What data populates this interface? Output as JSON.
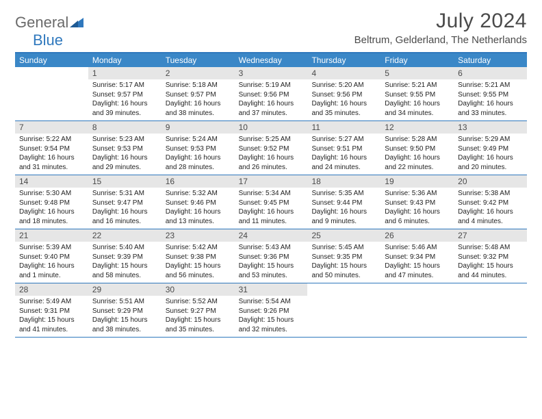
{
  "brand": {
    "part1": "General",
    "part2": "Blue"
  },
  "title": "July 2024",
  "location": "Beltrum, Gelderland, The Netherlands",
  "colors": {
    "header_bar": "#3a87c7",
    "rule": "#2f78bd",
    "daynum_bg": "#e6e6e6",
    "text_dark": "#4a4a4a",
    "body_text": "#222222",
    "white": "#ffffff",
    "logo_gray": "#6a6a6a",
    "logo_blue": "#2f78bd"
  },
  "daysOfWeek": [
    "Sunday",
    "Monday",
    "Tuesday",
    "Wednesday",
    "Thursday",
    "Friday",
    "Saturday"
  ],
  "weeks": [
    [
      {
        "n": "",
        "sr": "",
        "ss": "",
        "dl": ""
      },
      {
        "n": "1",
        "sr": "Sunrise: 5:17 AM",
        "ss": "Sunset: 9:57 PM",
        "dl": "Daylight: 16 hours and 39 minutes."
      },
      {
        "n": "2",
        "sr": "Sunrise: 5:18 AM",
        "ss": "Sunset: 9:57 PM",
        "dl": "Daylight: 16 hours and 38 minutes."
      },
      {
        "n": "3",
        "sr": "Sunrise: 5:19 AM",
        "ss": "Sunset: 9:56 PM",
        "dl": "Daylight: 16 hours and 37 minutes."
      },
      {
        "n": "4",
        "sr": "Sunrise: 5:20 AM",
        "ss": "Sunset: 9:56 PM",
        "dl": "Daylight: 16 hours and 35 minutes."
      },
      {
        "n": "5",
        "sr": "Sunrise: 5:21 AM",
        "ss": "Sunset: 9:55 PM",
        "dl": "Daylight: 16 hours and 34 minutes."
      },
      {
        "n": "6",
        "sr": "Sunrise: 5:21 AM",
        "ss": "Sunset: 9:55 PM",
        "dl": "Daylight: 16 hours and 33 minutes."
      }
    ],
    [
      {
        "n": "7",
        "sr": "Sunrise: 5:22 AM",
        "ss": "Sunset: 9:54 PM",
        "dl": "Daylight: 16 hours and 31 minutes."
      },
      {
        "n": "8",
        "sr": "Sunrise: 5:23 AM",
        "ss": "Sunset: 9:53 PM",
        "dl": "Daylight: 16 hours and 29 minutes."
      },
      {
        "n": "9",
        "sr": "Sunrise: 5:24 AM",
        "ss": "Sunset: 9:53 PM",
        "dl": "Daylight: 16 hours and 28 minutes."
      },
      {
        "n": "10",
        "sr": "Sunrise: 5:25 AM",
        "ss": "Sunset: 9:52 PM",
        "dl": "Daylight: 16 hours and 26 minutes."
      },
      {
        "n": "11",
        "sr": "Sunrise: 5:27 AM",
        "ss": "Sunset: 9:51 PM",
        "dl": "Daylight: 16 hours and 24 minutes."
      },
      {
        "n": "12",
        "sr": "Sunrise: 5:28 AM",
        "ss": "Sunset: 9:50 PM",
        "dl": "Daylight: 16 hours and 22 minutes."
      },
      {
        "n": "13",
        "sr": "Sunrise: 5:29 AM",
        "ss": "Sunset: 9:49 PM",
        "dl": "Daylight: 16 hours and 20 minutes."
      }
    ],
    [
      {
        "n": "14",
        "sr": "Sunrise: 5:30 AM",
        "ss": "Sunset: 9:48 PM",
        "dl": "Daylight: 16 hours and 18 minutes."
      },
      {
        "n": "15",
        "sr": "Sunrise: 5:31 AM",
        "ss": "Sunset: 9:47 PM",
        "dl": "Daylight: 16 hours and 16 minutes."
      },
      {
        "n": "16",
        "sr": "Sunrise: 5:32 AM",
        "ss": "Sunset: 9:46 PM",
        "dl": "Daylight: 16 hours and 13 minutes."
      },
      {
        "n": "17",
        "sr": "Sunrise: 5:34 AM",
        "ss": "Sunset: 9:45 PM",
        "dl": "Daylight: 16 hours and 11 minutes."
      },
      {
        "n": "18",
        "sr": "Sunrise: 5:35 AM",
        "ss": "Sunset: 9:44 PM",
        "dl": "Daylight: 16 hours and 9 minutes."
      },
      {
        "n": "19",
        "sr": "Sunrise: 5:36 AM",
        "ss": "Sunset: 9:43 PM",
        "dl": "Daylight: 16 hours and 6 minutes."
      },
      {
        "n": "20",
        "sr": "Sunrise: 5:38 AM",
        "ss": "Sunset: 9:42 PM",
        "dl": "Daylight: 16 hours and 4 minutes."
      }
    ],
    [
      {
        "n": "21",
        "sr": "Sunrise: 5:39 AM",
        "ss": "Sunset: 9:40 PM",
        "dl": "Daylight: 16 hours and 1 minute."
      },
      {
        "n": "22",
        "sr": "Sunrise: 5:40 AM",
        "ss": "Sunset: 9:39 PM",
        "dl": "Daylight: 15 hours and 58 minutes."
      },
      {
        "n": "23",
        "sr": "Sunrise: 5:42 AM",
        "ss": "Sunset: 9:38 PM",
        "dl": "Daylight: 15 hours and 56 minutes."
      },
      {
        "n": "24",
        "sr": "Sunrise: 5:43 AM",
        "ss": "Sunset: 9:36 PM",
        "dl": "Daylight: 15 hours and 53 minutes."
      },
      {
        "n": "25",
        "sr": "Sunrise: 5:45 AM",
        "ss": "Sunset: 9:35 PM",
        "dl": "Daylight: 15 hours and 50 minutes."
      },
      {
        "n": "26",
        "sr": "Sunrise: 5:46 AM",
        "ss": "Sunset: 9:34 PM",
        "dl": "Daylight: 15 hours and 47 minutes."
      },
      {
        "n": "27",
        "sr": "Sunrise: 5:48 AM",
        "ss": "Sunset: 9:32 PM",
        "dl": "Daylight: 15 hours and 44 minutes."
      }
    ],
    [
      {
        "n": "28",
        "sr": "Sunrise: 5:49 AM",
        "ss": "Sunset: 9:31 PM",
        "dl": "Daylight: 15 hours and 41 minutes."
      },
      {
        "n": "29",
        "sr": "Sunrise: 5:51 AM",
        "ss": "Sunset: 9:29 PM",
        "dl": "Daylight: 15 hours and 38 minutes."
      },
      {
        "n": "30",
        "sr": "Sunrise: 5:52 AM",
        "ss": "Sunset: 9:27 PM",
        "dl": "Daylight: 15 hours and 35 minutes."
      },
      {
        "n": "31",
        "sr": "Sunrise: 5:54 AM",
        "ss": "Sunset: 9:26 PM",
        "dl": "Daylight: 15 hours and 32 minutes."
      },
      {
        "n": "",
        "sr": "",
        "ss": "",
        "dl": ""
      },
      {
        "n": "",
        "sr": "",
        "ss": "",
        "dl": ""
      },
      {
        "n": "",
        "sr": "",
        "ss": "",
        "dl": ""
      }
    ]
  ]
}
